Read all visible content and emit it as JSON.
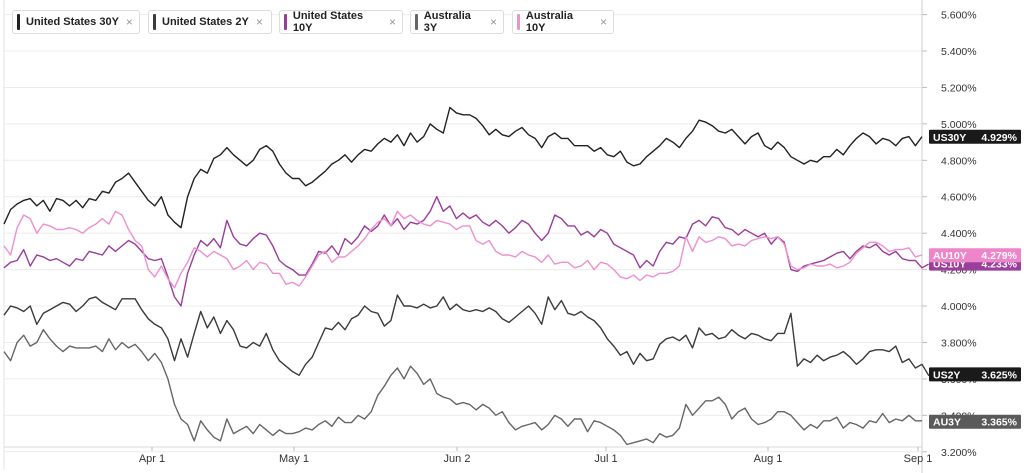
{
  "chart_data": {
    "type": "line",
    "title": "",
    "xlabel": "",
    "ylabel": "",
    "ylim": [
      3.1,
      5.68
    ],
    "grid": true,
    "legend_position": "top-left",
    "x_ticks": [
      "Apr 1",
      "May 1",
      "Jun 2",
      "Jul 1",
      "Aug 1",
      "Sep 1"
    ],
    "y_ticks": [
      "3.200%",
      "3.400%",
      "3.600%",
      "3.800%",
      "4.000%",
      "4.200%",
      "4.400%",
      "4.600%",
      "4.800%",
      "5.000%",
      "5.200%",
      "5.400%",
      "5.600%"
    ],
    "series": [
      {
        "name": "United States 30Y",
        "tag": "US30Y",
        "last_label": "4.929%",
        "color": "#222222",
        "tag_color": "#1a1a1a",
        "values": [
          4.45,
          4.53,
          4.56,
          4.58,
          4.59,
          4.55,
          4.58,
          4.52,
          4.59,
          4.58,
          4.55,
          4.58,
          4.54,
          4.59,
          4.58,
          4.63,
          4.62,
          4.68,
          4.7,
          4.73,
          4.68,
          4.63,
          4.58,
          4.55,
          4.6,
          4.5,
          4.46,
          4.43,
          4.6,
          4.7,
          4.75,
          4.73,
          4.81,
          4.83,
          4.87,
          4.83,
          4.8,
          4.77,
          4.8,
          4.86,
          4.88,
          4.85,
          4.78,
          4.73,
          4.7,
          4.7,
          4.66,
          4.68,
          4.71,
          4.74,
          4.78,
          4.8,
          4.83,
          4.79,
          4.83,
          4.86,
          4.85,
          4.89,
          4.92,
          4.9,
          4.94,
          4.88,
          4.95,
          4.9,
          4.93,
          5.0,
          4.97,
          4.95,
          5.09,
          5.06,
          5.05,
          5.05,
          5.03,
          4.99,
          4.94,
          4.97,
          4.94,
          4.93,
          4.96,
          4.98,
          4.94,
          4.92,
          4.87,
          4.93,
          4.95,
          4.92,
          4.92,
          4.88,
          4.88,
          4.88,
          4.85,
          4.87,
          4.83,
          4.82,
          4.85,
          4.79,
          4.77,
          4.78,
          4.82,
          4.85,
          4.88,
          4.92,
          4.9,
          4.87,
          4.92,
          4.96,
          5.02,
          5.01,
          4.99,
          4.96,
          4.95,
          4.97,
          4.93,
          4.89,
          4.93,
          4.95,
          4.88,
          4.86,
          4.9,
          4.87,
          4.82,
          4.8,
          4.78,
          4.8,
          4.79,
          4.82,
          4.82,
          4.86,
          4.83,
          4.88,
          4.92,
          4.95,
          4.93,
          4.89,
          4.92,
          4.91,
          4.88,
          4.92,
          4.93,
          4.88,
          4.93
        ]
      },
      {
        "name": "United States 2Y",
        "tag": "US2Y",
        "last_label": "3.625%",
        "color": "#3a3a3a",
        "tag_color": "#1a1a1a",
        "values": [
          3.95,
          4.0,
          3.99,
          3.97,
          4.0,
          3.9,
          3.96,
          3.98,
          4.0,
          4.02,
          4.01,
          3.97,
          4.0,
          4.04,
          4.05,
          4.02,
          4.0,
          3.98,
          4.04,
          4.04,
          4.04,
          3.98,
          3.93,
          3.9,
          3.88,
          3.82,
          3.7,
          3.82,
          3.72,
          3.85,
          3.97,
          3.88,
          3.94,
          3.85,
          3.92,
          3.87,
          3.78,
          3.77,
          3.8,
          3.78,
          3.85,
          3.76,
          3.7,
          3.67,
          3.64,
          3.62,
          3.68,
          3.72,
          3.8,
          3.88,
          3.87,
          3.91,
          3.87,
          3.93,
          3.95,
          4.0,
          3.97,
          3.96,
          3.89,
          3.92,
          4.06,
          4.0,
          4.0,
          3.99,
          4.01,
          3.99,
          4.0,
          4.05,
          3.98,
          4.01,
          3.98,
          3.97,
          3.98,
          3.97,
          3.99,
          3.97,
          3.93,
          3.91,
          3.94,
          3.97,
          4.0,
          3.96,
          3.9,
          4.05,
          3.98,
          4.03,
          3.96,
          3.95,
          3.97,
          3.94,
          3.92,
          3.88,
          3.82,
          3.78,
          3.73,
          3.75,
          3.68,
          3.74,
          3.7,
          3.71,
          3.79,
          3.82,
          3.83,
          3.81,
          3.84,
          3.77,
          3.88,
          3.84,
          3.85,
          3.82,
          3.83,
          3.87,
          3.84,
          3.82,
          3.85,
          3.84,
          3.82,
          3.81,
          3.85,
          3.85,
          3.96,
          3.67,
          3.71,
          3.69,
          3.73,
          3.7,
          3.72,
          3.73,
          3.75,
          3.72,
          3.68,
          3.71,
          3.75,
          3.76,
          3.76,
          3.75,
          3.78,
          3.69,
          3.71,
          3.66,
          3.68,
          3.62,
          3.62,
          3.63
        ]
      },
      {
        "name": "United States 10Y",
        "tag": "US10Y",
        "last_label": "4.233%",
        "color": "#9a3d9a",
        "tag_color": "#9c3f9c",
        "values": [
          4.21,
          4.24,
          4.25,
          4.31,
          4.22,
          4.28,
          4.27,
          4.25,
          4.26,
          4.24,
          4.22,
          4.26,
          4.25,
          4.3,
          4.29,
          4.28,
          4.33,
          4.3,
          4.33,
          4.36,
          4.34,
          4.3,
          4.26,
          4.25,
          4.26,
          4.16,
          4.05,
          4.0,
          4.18,
          4.28,
          4.36,
          4.33,
          4.37,
          4.32,
          4.47,
          4.38,
          4.34,
          4.33,
          4.37,
          4.4,
          4.39,
          4.33,
          4.25,
          4.22,
          4.2,
          4.17,
          4.17,
          4.23,
          4.3,
          4.29,
          4.33,
          4.28,
          4.37,
          4.34,
          4.38,
          4.44,
          4.41,
          4.44,
          4.5,
          4.44,
          4.48,
          4.42,
          4.46,
          4.45,
          4.47,
          4.52,
          4.6,
          4.52,
          4.55,
          4.48,
          4.51,
          4.48,
          4.5,
          4.46,
          4.44,
          4.47,
          4.44,
          4.4,
          4.43,
          4.47,
          4.45,
          4.4,
          4.36,
          4.4,
          4.5,
          4.48,
          4.44,
          4.44,
          4.39,
          4.41,
          4.38,
          4.42,
          4.4,
          4.34,
          4.32,
          4.3,
          4.28,
          4.21,
          4.25,
          4.22,
          4.3,
          4.35,
          4.34,
          4.38,
          4.37,
          4.45,
          4.47,
          4.44,
          4.49,
          4.48,
          4.43,
          4.42,
          4.39,
          4.42,
          4.4,
          4.38,
          4.4,
          4.34,
          4.38,
          4.35,
          4.2,
          4.19,
          4.22,
          4.23,
          4.24,
          4.25,
          4.27,
          4.29,
          4.3,
          4.26,
          4.3,
          4.33,
          4.32,
          4.34,
          4.3,
          4.28,
          4.3,
          4.26,
          4.25,
          4.25,
          4.21,
          4.23
        ]
      },
      {
        "name": "Australia 3Y",
        "tag": "AU3Y",
        "last_label": "3.365%",
        "color": "#666666",
        "tag_color": "#5a5a5a",
        "values": [
          3.75,
          3.7,
          3.8,
          3.84,
          3.78,
          3.8,
          3.87,
          3.82,
          3.78,
          3.75,
          3.78,
          3.77,
          3.77,
          3.77,
          3.78,
          3.75,
          3.82,
          3.76,
          3.8,
          3.77,
          3.79,
          3.75,
          3.7,
          3.74,
          3.69,
          3.6,
          3.46,
          3.38,
          3.35,
          3.26,
          3.37,
          3.32,
          3.28,
          3.26,
          3.38,
          3.3,
          3.32,
          3.34,
          3.3,
          3.35,
          3.32,
          3.29,
          3.32,
          3.3,
          3.3,
          3.31,
          3.33,
          3.32,
          3.35,
          3.37,
          3.34,
          3.39,
          3.36,
          3.36,
          3.4,
          3.38,
          3.42,
          3.51,
          3.56,
          3.62,
          3.66,
          3.6,
          3.67,
          3.63,
          3.57,
          3.6,
          3.52,
          3.5,
          3.49,
          3.46,
          3.47,
          3.46,
          3.43,
          3.46,
          3.44,
          3.4,
          3.42,
          3.36,
          3.32,
          3.34,
          3.35,
          3.36,
          3.32,
          3.35,
          3.4,
          3.38,
          3.34,
          3.38,
          3.38,
          3.31,
          3.37,
          3.36,
          3.34,
          3.32,
          3.29,
          3.24,
          3.25,
          3.26,
          3.27,
          3.25,
          3.3,
          3.28,
          3.29,
          3.33,
          3.46,
          3.4,
          3.44,
          3.48,
          3.48,
          3.5,
          3.46,
          3.38,
          3.42,
          3.44,
          3.38,
          3.35,
          3.36,
          3.38,
          3.42,
          3.42,
          3.4,
          3.36,
          3.32,
          3.35,
          3.33,
          3.37,
          3.37,
          3.39,
          3.33,
          3.36,
          3.35,
          3.33,
          3.37,
          3.36,
          3.41,
          3.36,
          3.38,
          3.37,
          3.4,
          3.37,
          3.37
        ]
      },
      {
        "name": "Australia 10Y",
        "tag": "AU10Y",
        "last_label": "4.279%",
        "color": "#ee8fce",
        "tag_color": "#ee84c9",
        "values": [
          4.33,
          4.28,
          4.43,
          4.5,
          4.48,
          4.4,
          4.45,
          4.44,
          4.42,
          4.42,
          4.43,
          4.42,
          4.4,
          4.43,
          4.45,
          4.48,
          4.45,
          4.52,
          4.5,
          4.42,
          4.36,
          4.33,
          4.2,
          4.16,
          4.22,
          4.15,
          4.1,
          4.18,
          4.24,
          4.32,
          4.3,
          4.27,
          4.3,
          4.28,
          4.26,
          4.2,
          4.22,
          4.25,
          4.2,
          4.24,
          4.23,
          4.18,
          4.18,
          4.12,
          4.13,
          4.11,
          4.16,
          4.22,
          4.28,
          4.3,
          4.24,
          4.27,
          4.27,
          4.3,
          4.33,
          4.37,
          4.42,
          4.46,
          4.48,
          4.44,
          4.52,
          4.48,
          4.5,
          4.47,
          4.45,
          4.44,
          4.47,
          4.46,
          4.45,
          4.42,
          4.44,
          4.44,
          4.36,
          4.34,
          4.36,
          4.3,
          4.28,
          4.28,
          4.27,
          4.3,
          4.28,
          4.27,
          4.24,
          4.28,
          4.23,
          4.24,
          4.24,
          4.21,
          4.22,
          4.25,
          4.2,
          4.24,
          4.23,
          4.2,
          4.16,
          4.15,
          4.17,
          4.14,
          4.17,
          4.16,
          4.18,
          4.18,
          4.19,
          4.22,
          4.38,
          4.3,
          4.38,
          4.35,
          4.36,
          4.38,
          4.37,
          4.33,
          4.34,
          4.33,
          4.36,
          4.37,
          4.38,
          4.37,
          4.38,
          4.34,
          4.22,
          4.2,
          4.21,
          4.23,
          4.22,
          4.22,
          4.23,
          4.21,
          4.22,
          4.24,
          4.29,
          4.32,
          4.35,
          4.35,
          4.33,
          4.3,
          4.31,
          4.31,
          4.32,
          4.27,
          4.28
        ]
      }
    ]
  }
}
